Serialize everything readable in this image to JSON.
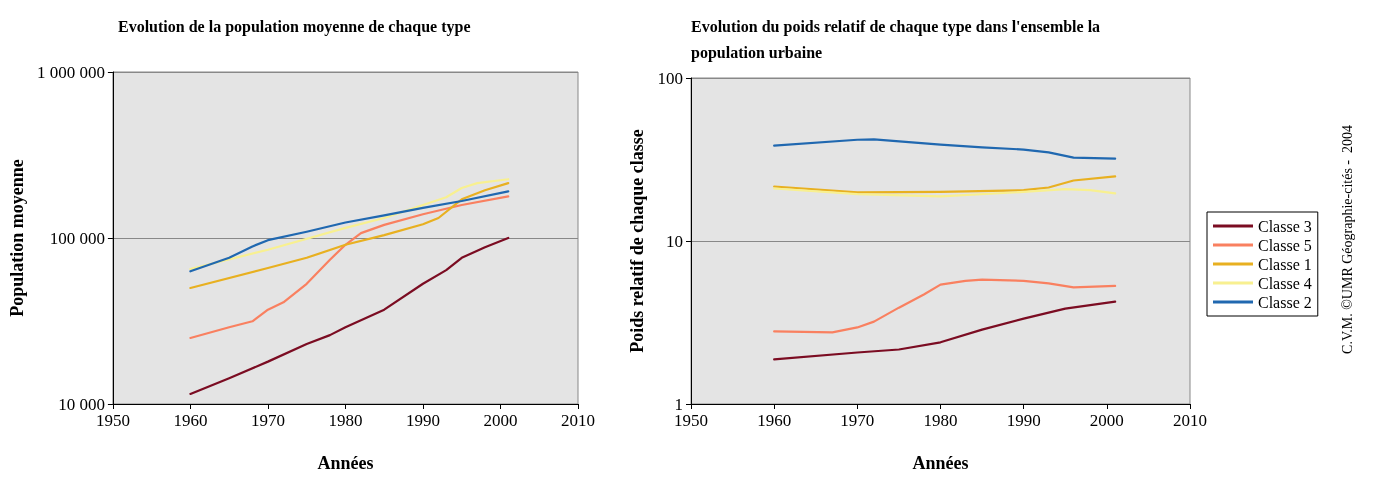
{
  "chart_data": [
    {
      "type": "line",
      "title": "Evolution de la population moyenne de chaque type",
      "xlabel": "Années",
      "ylabel": "Population moyenne",
      "log": "y",
      "grid": "y",
      "legend": false,
      "marker": "none",
      "line_style": "solid",
      "xlim": [
        1950,
        2010
      ],
      "xticks": [
        1950,
        1960,
        1970,
        1980,
        1990,
        2000,
        2010
      ],
      "ylim": [
        10000,
        1000000
      ],
      "yticks": [
        {
          "value": 10000,
          "label": "10 000"
        },
        {
          "value": 100000,
          "label": "100 000"
        },
        {
          "value": 1000000,
          "label": "1 000 000"
        }
      ],
      "series": [
        {
          "color": "#7b0c22",
          "x": [
            1960,
            1965,
            1970,
            1975,
            1978,
            1980,
            1985,
            1990,
            1993,
            1995,
            1998,
            2001
          ],
          "values": [
            11500,
            14300,
            18000,
            23000,
            26000,
            29000,
            37000,
            53000,
            64000,
            76000,
            88000,
            100000
          ]
        },
        {
          "color": "#f98060",
          "x": [
            1960,
            1965,
            1968,
            1970,
            1972,
            1975,
            1978,
            1980,
            1982,
            1985,
            1990,
            1995,
            2001
          ],
          "values": [
            25000,
            29000,
            31500,
            37000,
            41000,
            53000,
            74000,
            91000,
            107000,
            120000,
            139000,
            158000,
            178000
          ]
        },
        {
          "color": "#e8b020",
          "x": [
            1960,
            1970,
            1975,
            1980,
            1985,
            1990,
            1992,
            1995,
            1998,
            2001
          ],
          "values": [
            50000,
            66000,
            76000,
            91000,
            104000,
            121000,
            132000,
            171000,
            194000,
            214000
          ]
        },
        {
          "color": "#f8f090",
          "x": [
            1960,
            1970,
            1980,
            1985,
            1990,
            1993,
            1995,
            1997,
            2001
          ],
          "values": [
            65000,
            85000,
            115000,
            132000,
            158000,
            176000,
            200000,
            214000,
            226000
          ]
        },
        {
          "color": "#2068b0",
          "x": [
            1960,
            1965,
            1968,
            1970,
            1975,
            1980,
            1985,
            1990,
            1995,
            2001
          ],
          "values": [
            63000,
            76000,
            89000,
            97000,
            109000,
            124000,
            137000,
            152000,
            167000,
            191000
          ]
        }
      ]
    },
    {
      "type": "line",
      "title": "Evolution du poids relatif de chaque type dans l'ensemble la population urbaine",
      "xlabel": "Années",
      "ylabel": "Poids relatif de chaque classe",
      "log": "y",
      "grid": "y",
      "legend": "right",
      "marker": "none",
      "line_style": "solid",
      "annotations": [
        "C.V.M. ©UMR Géographie-cités -  2004"
      ],
      "xlim": [
        1950,
        2010
      ],
      "xticks": [
        1950,
        1960,
        1970,
        1980,
        1990,
        2000,
        2010
      ],
      "ylim": [
        1,
        100
      ],
      "yticks": [
        1,
        10,
        100
      ],
      "series": [
        {
          "name": "Classe 3",
          "color": "#7b0c22",
          "x": [
            1960,
            1970,
            1975,
            1980,
            1985,
            1990,
            1995,
            2001
          ],
          "values": [
            1.88,
            2.07,
            2.16,
            2.39,
            2.86,
            3.34,
            3.85,
            4.25
          ]
        },
        {
          "name": "Classe 5",
          "color": "#f98060",
          "x": [
            1960,
            1967,
            1970,
            1972,
            1975,
            1978,
            1980,
            1983,
            1985,
            1990,
            1993,
            1996,
            2001
          ],
          "values": [
            2.79,
            2.75,
            2.95,
            3.2,
            3.9,
            4.7,
            5.4,
            5.7,
            5.8,
            5.7,
            5.5,
            5.2,
            5.3
          ]
        },
        {
          "name": "Classe 1",
          "color": "#e8b020",
          "x": [
            1960,
            1970,
            1980,
            1990,
            1993,
            1996,
            2001
          ],
          "values": [
            21.6,
            19.9,
            20,
            20.5,
            21.3,
            23.5,
            24.9
          ]
        },
        {
          "name": "Classe 4",
          "color": "#f8f090",
          "x": [
            1960,
            1970,
            1980,
            1990,
            1995,
            1998,
            2001
          ],
          "values": [
            21,
            19.4,
            18.8,
            20,
            20.8,
            20.5,
            19.6
          ]
        },
        {
          "name": "Classe 2",
          "color": "#2068b0",
          "x": [
            1960,
            1970,
            1972,
            1980,
            1985,
            1990,
            1993,
            1996,
            2001
          ],
          "values": [
            38.5,
            41.8,
            42,
            39,
            37.5,
            36.4,
            35,
            32.5,
            32
          ]
        }
      ]
    }
  ]
}
